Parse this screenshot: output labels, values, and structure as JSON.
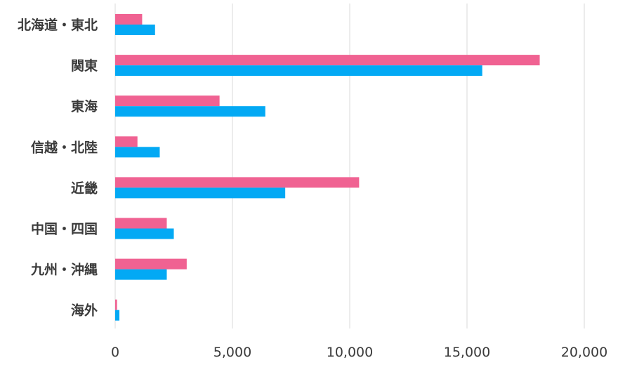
{
  "chart_data": {
    "type": "bar",
    "orientation": "horizontal",
    "categories": [
      "北海道・東北",
      "関東",
      "東海",
      "信越・北陸",
      "近畿",
      "中国・四国",
      "九州・沖縄",
      "海外"
    ],
    "series": [
      {
        "values": [
          1150,
          18100,
          4450,
          950,
          10400,
          2200,
          3050,
          80
        ],
        "color": "#f06292"
      },
      {
        "values": [
          1700,
          15650,
          6400,
          1900,
          7250,
          2500,
          2200,
          180
        ],
        "color": "#03a9f4"
      }
    ],
    "xlim": [
      0,
      20000
    ],
    "xticks": [
      "0",
      "5,000",
      "10,000",
      "15,000",
      "20,000"
    ],
    "grid": true,
    "legend": "none"
  }
}
